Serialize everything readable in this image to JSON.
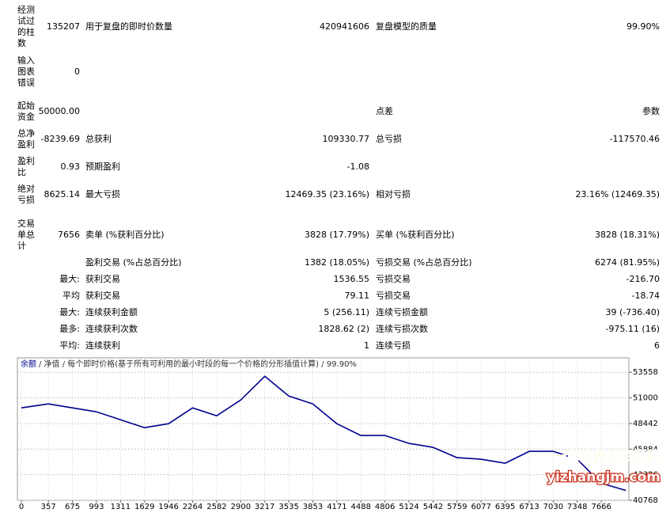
{
  "report": {
    "rows": [
      [
        "经测试过的柱数",
        "135207",
        "用于复盘的即时价数量",
        "420941606",
        "复盘模型的质量",
        "99.90%"
      ],
      [
        "输入图表错误",
        "0",
        null,
        null,
        null,
        null
      ],
      [
        "起始资金",
        "50000.00",
        null,
        null,
        "点差",
        "参数"
      ],
      [
        "总净盈利",
        "-8239.69",
        "总获利",
        "109330.77",
        "总亏损",
        "-117570.46"
      ],
      [
        "盈利比",
        "0.93",
        "预期盈利",
        "-1.08",
        null,
        null
      ],
      [
        "绝对亏损",
        "8625.14",
        "最大亏损",
        "12469.35 (23.16%)",
        "相对亏损",
        "23.16% (12469.35)"
      ],
      [
        "交易单总计",
        "7656",
        "卖单 (%获利百分比)",
        "3828 (17.79%)",
        "买单 (%获利百分比)",
        "3828 (18.31%)"
      ],
      [
        null,
        null,
        "盈利交易 (%占总百分比)",
        "1382 (18.05%)",
        "亏损交易 (%占总百分比)",
        "6274 (81.95%)"
      ],
      [
        null,
        "最大:",
        "获利交易",
        "1536.55",
        "亏损交易",
        "-216.70"
      ],
      [
        null,
        "平均",
        "获利交易",
        "79.11",
        "亏损交易",
        "-18.74"
      ],
      [
        null,
        "最大:",
        "连续获利金额",
        "5 (256.11)",
        "连续亏损金额",
        "39 (-736.40)"
      ],
      [
        null,
        "最多:",
        "连续获利次数",
        "1828.62 (2)",
        "连续亏损次数",
        "-975.11 (16)"
      ],
      [
        null,
        "平均:",
        "连续获利",
        "1",
        "连续亏损",
        "6"
      ]
    ]
  },
  "chart_data": {
    "type": "line",
    "subtitle": "/ 净值 / 每个即时价格(基于所有可利用的最小时段的每一个价格的分形插值计算) / 99.90%",
    "x": [
      0,
      357,
      675,
      993,
      1311,
      1629,
      1946,
      2264,
      2582,
      2900,
      3217,
      3535,
      3853,
      4171,
      4488,
      4806,
      5124,
      5442,
      5759,
      6077,
      6395,
      6713,
      7030,
      7348,
      7656,
      7990
    ],
    "series": [
      {
        "name": "余额",
        "color": "#000090",
        "values": [
          50005,
          50400,
          50000,
          49610,
          48820,
          48030,
          48420,
          50000,
          49210,
          50790,
          53160,
          51190,
          50400,
          48420,
          47240,
          47240,
          46450,
          46060,
          45030,
          44870,
          44480,
          45660,
          45660,
          44870,
          42500,
          41760
        ]
      }
    ],
    "xlim": [
      0,
      8030
    ],
    "xticks": [
      0,
      357,
      675,
      993,
      1311,
      1629,
      1946,
      2264,
      2582,
      2900,
      3217,
      3535,
      3853,
      4171,
      4488,
      4806,
      5124,
      5442,
      5759,
      6077,
      6395,
      6713,
      7030,
      7348,
      7666
    ],
    "ylim": [
      40768,
      55000
    ],
    "yticks": [
      40768,
      43326,
      45884,
      48442,
      51000,
      53558
    ],
    "grid": true
  },
  "watermark": {
    "line1": "一掌金外汇资源网",
    "line2": "yizhangjm.com"
  }
}
